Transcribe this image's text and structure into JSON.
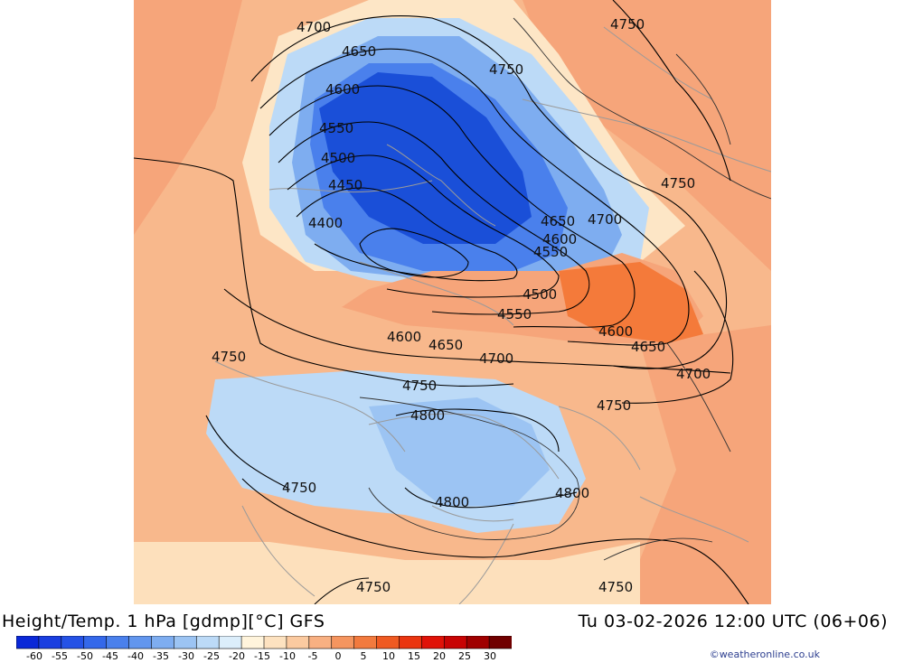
{
  "header": {
    "title": "Height/Temp. 1 hPa [gdmp][°C] GFS",
    "valid_time": "Tu 03-02-2026 12:00 UTC (06+06)"
  },
  "credit": "©weatheronline.co.uk",
  "colors": {
    "warm_background": "#f7b487",
    "cold_core": "#1a4fd8",
    "warm_core": "#f47a3a"
  },
  "contours": [
    {
      "label": "4700"
    },
    {
      "label": "4650"
    },
    {
      "label": "4600"
    },
    {
      "label": "4550"
    },
    {
      "label": "4500"
    },
    {
      "label": "4450"
    },
    {
      "label": "4400"
    },
    {
      "label": "4750"
    },
    {
      "label": "4750"
    },
    {
      "label": "4750"
    },
    {
      "label": "4650"
    },
    {
      "label": "4700"
    },
    {
      "label": "4600"
    },
    {
      "label": "4550"
    },
    {
      "label": "4500"
    },
    {
      "label": "4550"
    },
    {
      "label": "4600"
    },
    {
      "label": "4600"
    },
    {
      "label": "4650"
    },
    {
      "label": "4650"
    },
    {
      "label": "4700"
    },
    {
      "label": "4700"
    },
    {
      "label": "4750"
    },
    {
      "label": "4750"
    },
    {
      "label": "4750"
    },
    {
      "label": "4800"
    },
    {
      "label": "4750"
    },
    {
      "label": "4800"
    },
    {
      "label": "4800"
    },
    {
      "label": "4750"
    },
    {
      "label": "4750"
    }
  ],
  "legend": {
    "tick_labels": [
      "-60",
      "-55",
      "-50",
      "-45",
      "-40",
      "-35",
      "-30",
      "-25",
      "-20",
      "-15",
      "-10",
      "-5",
      "0",
      "5",
      "10",
      "15",
      "20",
      "25",
      "30"
    ],
    "swatches": [
      "#0a28d8",
      "#1a3ee0",
      "#2552e6",
      "#3468ea",
      "#4a80ec",
      "#6296ee",
      "#7eadf0",
      "#9cc4f3",
      "#bcdaf7",
      "#dceefb",
      "#fff4dc",
      "#fde2c0",
      "#fbcaa0",
      "#f8b082",
      "#f5955f",
      "#f27a3e",
      "#ef5a22",
      "#ea3510",
      "#e01208",
      "#c80404",
      "#a00000",
      "#700000"
    ]
  }
}
